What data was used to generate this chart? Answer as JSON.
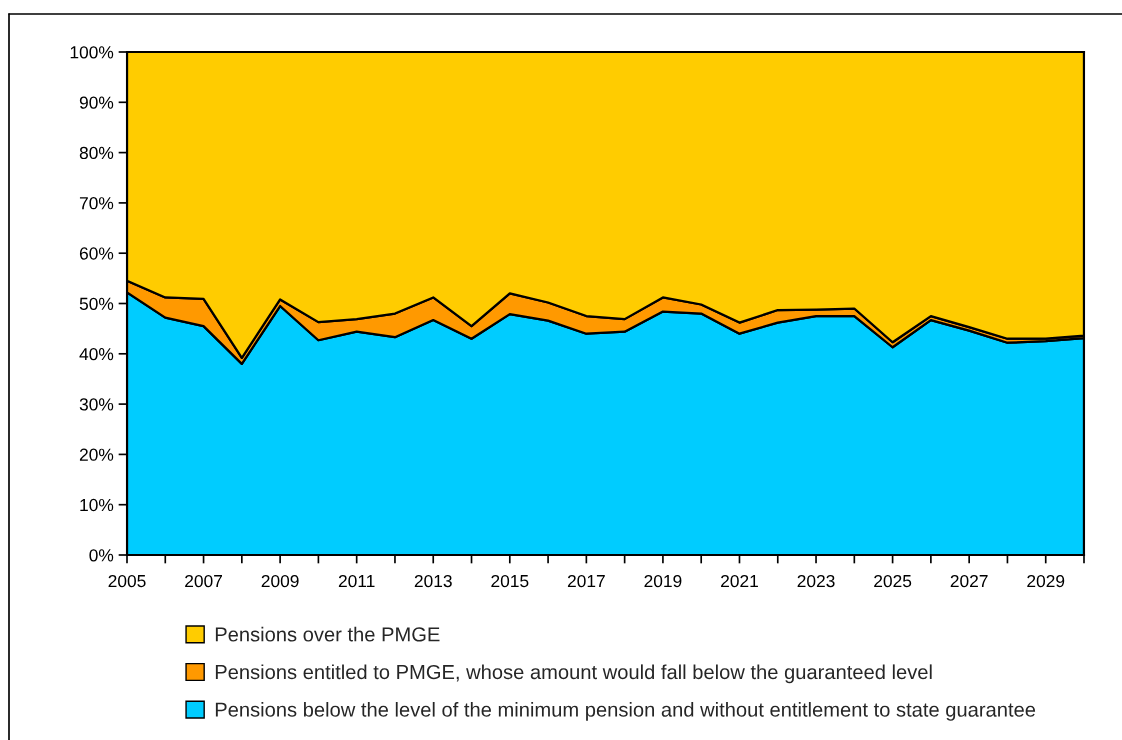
{
  "chart_data": {
    "type": "area",
    "stacked": true,
    "x": [
      2005,
      2006,
      2007,
      2008,
      2009,
      2010,
      2011,
      2012,
      2013,
      2014,
      2015,
      2016,
      2017,
      2018,
      2019,
      2020,
      2021,
      2022,
      2023,
      2024,
      2025,
      2026,
      2027,
      2028,
      2029,
      2030
    ],
    "xlim": [
      2005,
      2030
    ],
    "xticks": [
      2005,
      {
        "value": 2006,
        "label": null
      },
      2007,
      {
        "value": 2008,
        "label": null
      },
      2009,
      {
        "value": 2010,
        "label": null
      },
      2011,
      {
        "value": 2012,
        "label": null
      },
      2013,
      {
        "value": 2014,
        "label": null
      },
      2015,
      {
        "value": 2016,
        "label": null
      },
      2017,
      {
        "value": 2018,
        "label": null
      },
      2019,
      {
        "value": 2020,
        "label": null
      },
      2021,
      {
        "value": 2022,
        "label": null
      },
      2023,
      {
        "value": 2024,
        "label": null
      },
      2025,
      {
        "value": 2026,
        "label": null
      },
      2027,
      {
        "value": 2028,
        "label": null
      },
      2029,
      {
        "value": 2030,
        "label": null
      }
    ],
    "ylim": [
      0,
      100
    ],
    "yticks": [
      {
        "value": 0,
        "label": "0%"
      },
      {
        "value": 10,
        "label": "10%"
      },
      {
        "value": 20,
        "label": "20%"
      },
      {
        "value": 30,
        "label": "30%"
      },
      {
        "value": 40,
        "label": "40%"
      },
      {
        "value": 50,
        "label": "50%"
      },
      {
        "value": 60,
        "label": "60%"
      },
      {
        "value": 70,
        "label": "70%"
      },
      {
        "value": 80,
        "label": "80%"
      },
      {
        "value": 90,
        "label": "90%"
      },
      {
        "value": 100,
        "label": "100%"
      }
    ],
    "series": [
      {
        "name": "Pensions below the level of the minimum pension and without entitlement to state guarantee",
        "color": "#00ccff",
        "values": [
          52.2,
          47.2,
          45.5,
          38.0,
          49.5,
          42.7,
          44.4,
          43.3,
          46.7,
          43.0,
          47.9,
          46.6,
          44.0,
          44.4,
          48.4,
          48.0,
          44.0,
          46.2,
          47.5,
          47.5,
          41.3,
          46.7,
          44.6,
          42.2,
          42.5,
          43.1
        ]
      },
      {
        "name": "Pensions entitled to PMGE, whose amount would fall below the guaranteed level",
        "color": "#ff9900",
        "values": [
          2.3,
          4.0,
          5.4,
          1.2,
          1.3,
          3.6,
          2.5,
          4.7,
          4.5,
          2.5,
          4.1,
          3.6,
          3.5,
          2.5,
          2.8,
          1.8,
          2.2,
          2.5,
          1.3,
          1.5,
          1.0,
          0.8,
          0.7,
          0.8,
          0.5,
          0.5
        ]
      },
      {
        "name": "Pensions over the PMGE",
        "color": "#ffcc00",
        "values": [
          45.5,
          48.8,
          49.1,
          60.8,
          49.2,
          53.7,
          53.1,
          52.0,
          48.8,
          54.5,
          48.0,
          49.8,
          52.5,
          53.1,
          48.8,
          50.2,
          53.8,
          51.3,
          51.2,
          51.0,
          57.7,
          52.5,
          54.7,
          57.0,
          57.0,
          56.4
        ]
      }
    ],
    "legend": "bottom"
  }
}
